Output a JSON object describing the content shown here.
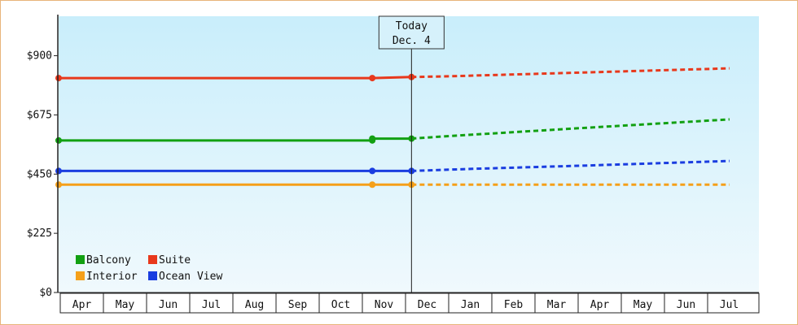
{
  "chart_data": {
    "type": "line",
    "x": [
      "Apr",
      "May",
      "Jun",
      "Jul",
      "Aug",
      "Sep",
      "Oct",
      "Nov",
      "Dec",
      "Jan",
      "Feb",
      "Mar",
      "Apr",
      "May",
      "Jun",
      "Jul"
    ],
    "y_ticks": [
      "$0",
      "$225",
      "$450",
      "$675",
      "$900"
    ],
    "ylim": [
      0,
      1050
    ],
    "today_label": "Today",
    "today_date": "Dec. 4",
    "today_x": 8.1,
    "colors": {
      "plot_bg_top": "#c9eefb",
      "plot_bg_bottom": "#f0f9fd",
      "frame_border": "#e8b47a"
    },
    "series": [
      {
        "name": "Suite",
        "color": "#e8381c",
        "actual": [
          [
            0,
            815
          ],
          [
            7.2,
            815
          ],
          [
            8.1,
            819
          ]
        ],
        "forecast": [
          [
            8.1,
            819
          ],
          [
            9.0,
            822
          ],
          [
            12.0,
            836
          ],
          [
            15.4,
            852
          ]
        ]
      },
      {
        "name": "Balcony",
        "color": "#12a012",
        "actual": [
          [
            0,
            578
          ],
          [
            7.2,
            578
          ],
          [
            7.2,
            585
          ],
          [
            8.1,
            585
          ]
        ],
        "forecast": [
          [
            8.1,
            585
          ],
          [
            9.0,
            595
          ],
          [
            12.0,
            625
          ],
          [
            15.4,
            658
          ]
        ]
      },
      {
        "name": "Ocean View",
        "color": "#1a3de0",
        "actual": [
          [
            0,
            462
          ],
          [
            8.1,
            462
          ]
        ],
        "forecast": [
          [
            8.1,
            462
          ],
          [
            9.5,
            470
          ],
          [
            12.0,
            482
          ],
          [
            15.4,
            500
          ]
        ]
      },
      {
        "name": "Interior",
        "color": "#f5a01a",
        "actual": [
          [
            0,
            410
          ],
          [
            8.1,
            410
          ]
        ],
        "forecast": [
          [
            8.1,
            410
          ],
          [
            15.4,
            410
          ]
        ]
      }
    ],
    "markers": [
      {
        "series": 0,
        "points": [
          [
            0,
            815
          ],
          [
            7.2,
            815
          ],
          [
            8.1,
            819
          ]
        ]
      },
      {
        "series": 1,
        "points": [
          [
            0,
            578
          ],
          [
            7.2,
            578
          ],
          [
            7.2,
            585
          ],
          [
            8.1,
            585
          ]
        ]
      },
      {
        "series": 2,
        "points": [
          [
            0,
            462
          ],
          [
            7.2,
            462
          ],
          [
            8.1,
            462
          ]
        ]
      },
      {
        "series": 3,
        "points": [
          [
            0,
            410
          ],
          [
            7.2,
            410
          ],
          [
            8.1,
            410
          ]
        ]
      }
    ],
    "legend": [
      {
        "series": 1,
        "label": "Balcony"
      },
      {
        "series": 0,
        "label": "Suite"
      },
      {
        "series": 3,
        "label": "Interior"
      },
      {
        "series": 2,
        "label": "Ocean View"
      }
    ],
    "grid": false,
    "legend_position": "bottom-left"
  }
}
